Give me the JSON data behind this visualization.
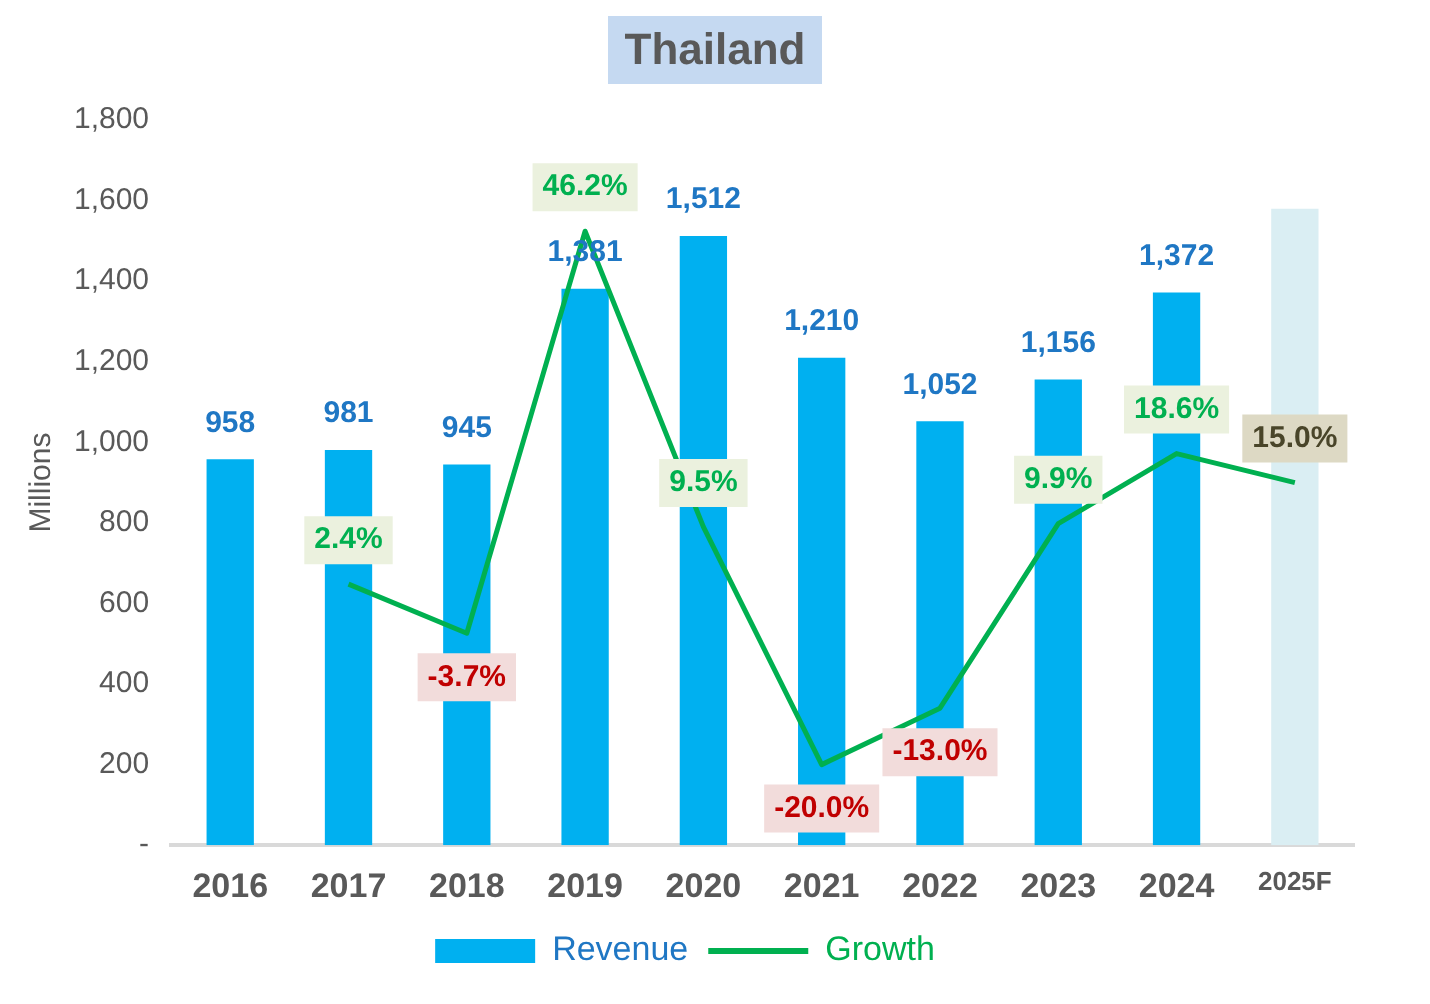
{
  "chart_data": {
    "type": "bar",
    "title": "Thailand",
    "ylabel": "Millions",
    "categories": [
      "2016",
      "2017",
      "2018",
      "2019",
      "2020",
      "2021",
      "2022",
      "2023",
      "2024",
      "2025F"
    ],
    "series": [
      {
        "name": "Revenue",
        "color": "#00b0f0",
        "colors": [
          "#00b0f0",
          "#00b0f0",
          "#00b0f0",
          "#00b0f0",
          "#00b0f0",
          "#00b0f0",
          "#00b0f0",
          "#00b0f0",
          "#00b0f0",
          "#daeef3"
        ],
        "values": [
          958,
          981,
          945,
          1381,
          1512,
          1210,
          1052,
          1156,
          1372,
          1580
        ],
        "value_labels": [
          "958",
          "981",
          "945",
          "1,381",
          "1,512",
          "1,210",
          "1,052",
          "1,156",
          "1,372",
          null
        ]
      },
      {
        "name": "Growth",
        "type": "line",
        "axis": "y2",
        "color": "#00b050",
        "values": [
          null,
          2.4,
          -3.7,
          46.2,
          9.5,
          -20.0,
          -13.0,
          9.9,
          18.6,
          15.0
        ],
        "value_labels": [
          null,
          "2.4%",
          "-3.7%",
          "46.2%",
          "9.5%",
          "-20.0%",
          "-13.0%",
          "9.9%",
          "18.6%",
          "15.0%"
        ]
      }
    ],
    "ylim": [
      0,
      1800
    ],
    "yticks": [
      {
        "value": 0,
        "label": "-"
      },
      200,
      400,
      600,
      800,
      {
        "value": 1000,
        "label": "1,000"
      },
      {
        "value": 1200,
        "label": "1,200"
      },
      {
        "value": 1400,
        "label": "1,400"
      },
      {
        "value": 1600,
        "label": "1,600"
      },
      {
        "value": 1800,
        "label": "1,800"
      }
    ],
    "grid": false,
    "legend": "bottom",
    "marker": "none",
    "line_style": "solid"
  }
}
